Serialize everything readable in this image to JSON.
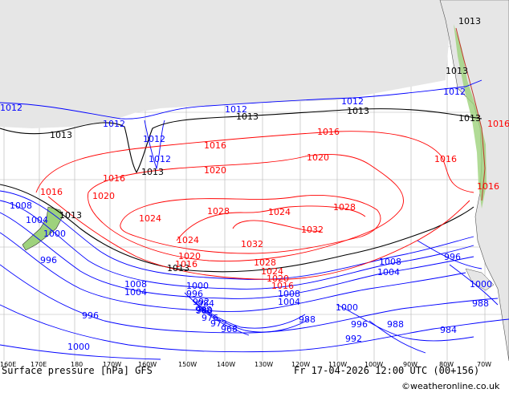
{
  "map": {
    "colors": {
      "land": "#e6e6e6",
      "ocean": "#ffffff",
      "terrain_green": "#9ed27c",
      "isobar_low": "#0000ff",
      "isobar_high": "#ff0000",
      "isobar_ref": "#000000",
      "grid": "#b4b4b4"
    },
    "isobar_labels": {
      "blue": [
        "1012",
        "1012",
        "1012",
        "1012",
        "1012",
        "1012",
        "1012",
        "1008",
        "1004",
        "1000",
        "996",
        "1008",
        "1004",
        "1000",
        "996",
        "992",
        "988",
        "984",
        "980",
        "976",
        "972",
        "968",
        "996",
        "1000",
        "992",
        "988",
        "984",
        "988",
        "988",
        "996",
        "1004",
        "1008",
        "1000",
        "1004",
        "1008",
        "996",
        "1000"
      ],
      "black": [
        "1013",
        "1013",
        "1013",
        "1013",
        "1013",
        "1013",
        "1013",
        "1013",
        "1013"
      ],
      "red": [
        "1016",
        "1016",
        "1016",
        "1016",
        "1016",
        "1020",
        "1020",
        "1020",
        "1020",
        "1024",
        "1024",
        "1024",
        "1024",
        "1028",
        "1028",
        "1028",
        "1032",
        "1032",
        "1016",
        "1016",
        "1020",
        "1016",
        "1016"
      ]
    }
  },
  "axis": {
    "lon_ticks": [
      "160E",
      "170E",
      "180",
      "170W",
      "160W",
      "150W",
      "140W",
      "130W",
      "120W",
      "110W",
      "100W",
      "90W",
      "80W",
      "70W"
    ]
  },
  "footer": {
    "left": "Surface pressure [hPa] GFS",
    "right": "Fr 17-04-2026 12:00 UTC (00+156)",
    "credit": "©weatheronline.co.uk"
  }
}
